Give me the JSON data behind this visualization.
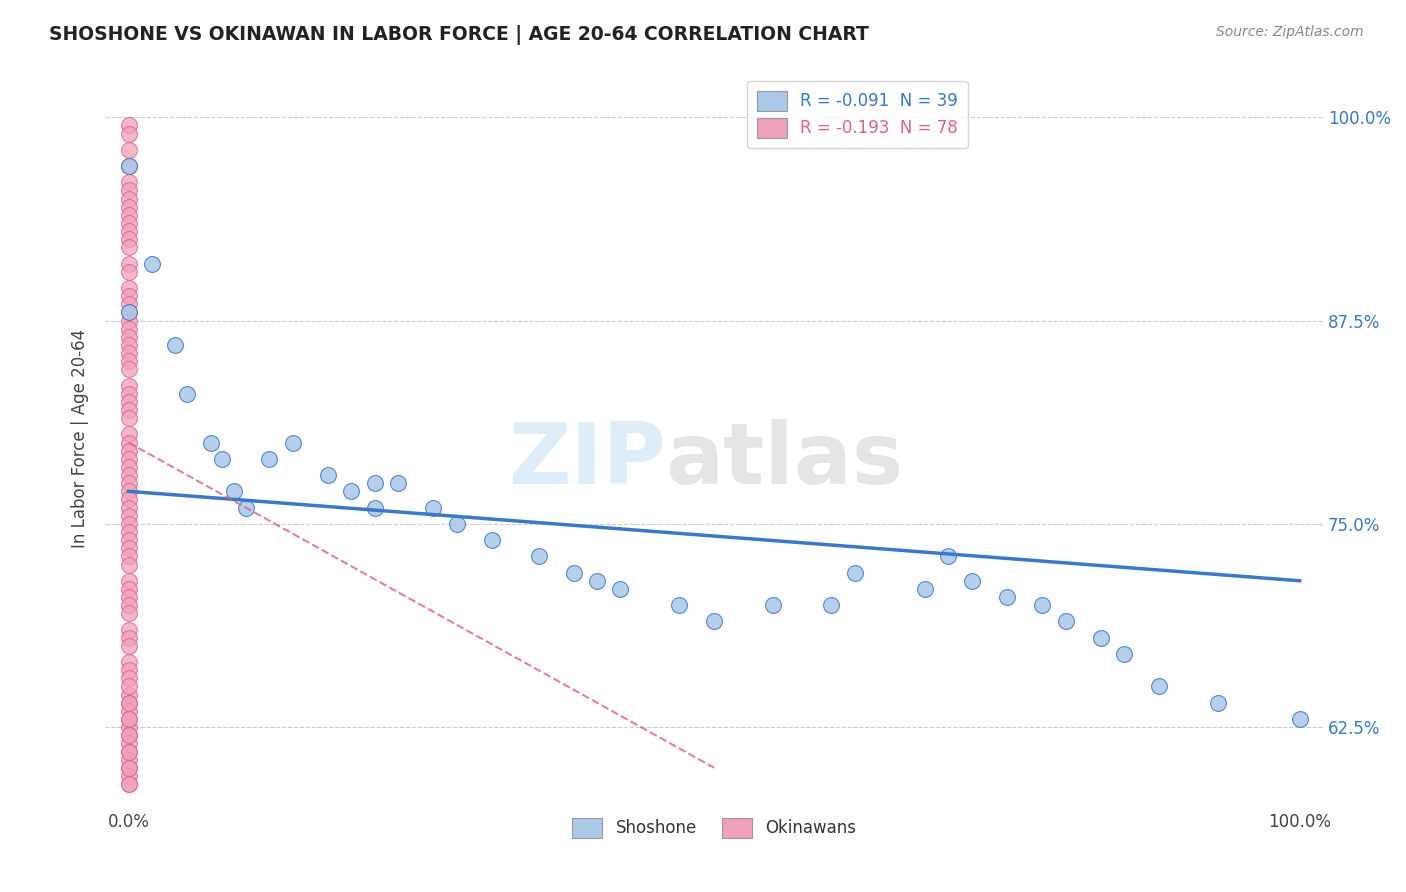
{
  "title": "SHOSHONE VS OKINAWAN IN LABOR FORCE | AGE 20-64 CORRELATION CHART",
  "source_text": "Source: ZipAtlas.com",
  "ylabel": "In Labor Force | Age 20-64",
  "xlim": [
    -0.02,
    1.02
  ],
  "ylim": [
    0.575,
    1.03
  ],
  "x_ticks": [
    0.0,
    0.25,
    0.5,
    0.75,
    1.0
  ],
  "x_tick_labels": [
    "0.0%",
    "",
    "",
    "",
    "100.0%"
  ],
  "y_tick_labels": [
    "62.5%",
    "75.0%",
    "87.5%",
    "100.0%"
  ],
  "y_ticks": [
    0.625,
    0.75,
    0.875,
    1.0
  ],
  "legend_r1": "-0.091",
  "legend_n1": "39",
  "legend_r2": "-0.193",
  "legend_n2": "78",
  "shoshone_color": "#aac8e8",
  "okinawan_color": "#f0a0b8",
  "line_shoshone_color": "#3a78c9",
  "line_okinawan_color": "#e06080",
  "shoshone_x": [
    0.0,
    0.0,
    0.02,
    0.04,
    0.05,
    0.07,
    0.08,
    0.09,
    0.1,
    0.12,
    0.14,
    0.17,
    0.19,
    0.21,
    0.21,
    0.23,
    0.26,
    0.28,
    0.31,
    0.35,
    0.38,
    0.4,
    0.42,
    0.47,
    0.5,
    0.55,
    0.6,
    0.62,
    0.68,
    0.7,
    0.72,
    0.75,
    0.78,
    0.8,
    0.83,
    0.85,
    0.88,
    0.93,
    1.0
  ],
  "shoshone_y": [
    0.97,
    0.88,
    0.91,
    0.86,
    0.83,
    0.8,
    0.79,
    0.77,
    0.76,
    0.79,
    0.8,
    0.78,
    0.77,
    0.76,
    0.775,
    0.775,
    0.76,
    0.75,
    0.74,
    0.73,
    0.72,
    0.715,
    0.71,
    0.7,
    0.69,
    0.7,
    0.7,
    0.72,
    0.71,
    0.73,
    0.715,
    0.705,
    0.7,
    0.69,
    0.68,
    0.67,
    0.65,
    0.64,
    0.63
  ],
  "okinawan_x": [
    0.0,
    0.0,
    0.0,
    0.0,
    0.0,
    0.0,
    0.0,
    0.0,
    0.0,
    0.0,
    0.0,
    0.0,
    0.0,
    0.0,
    0.0,
    0.0,
    0.0,
    0.0,
    0.0,
    0.0,
    0.0,
    0.0,
    0.0,
    0.0,
    0.0,
    0.0,
    0.0,
    0.0,
    0.0,
    0.0,
    0.0,
    0.0,
    0.0,
    0.0,
    0.0,
    0.0,
    0.0,
    0.0,
    0.0,
    0.0,
    0.0,
    0.0,
    0.0,
    0.0,
    0.0,
    0.0,
    0.0,
    0.0,
    0.0,
    0.0,
    0.0,
    0.0,
    0.0,
    0.0,
    0.0,
    0.0,
    0.0,
    0.0,
    0.0,
    0.0,
    0.0,
    0.0,
    0.0,
    0.0,
    0.0,
    0.0,
    0.0,
    0.0,
    0.0,
    0.0,
    0.0,
    0.0,
    0.0,
    0.0,
    0.0,
    0.0,
    0.0,
    0.0
  ],
  "okinawan_y": [
    0.995,
    0.99,
    0.98,
    0.97,
    0.96,
    0.955,
    0.95,
    0.945,
    0.94,
    0.935,
    0.93,
    0.925,
    0.92,
    0.91,
    0.905,
    0.895,
    0.89,
    0.885,
    0.88,
    0.875,
    0.87,
    0.865,
    0.86,
    0.855,
    0.85,
    0.845,
    0.835,
    0.83,
    0.825,
    0.82,
    0.815,
    0.805,
    0.8,
    0.795,
    0.79,
    0.785,
    0.78,
    0.775,
    0.77,
    0.765,
    0.76,
    0.755,
    0.75,
    0.745,
    0.74,
    0.735,
    0.73,
    0.725,
    0.715,
    0.71,
    0.705,
    0.7,
    0.695,
    0.685,
    0.68,
    0.675,
    0.665,
    0.66,
    0.655,
    0.645,
    0.64,
    0.635,
    0.625,
    0.62,
    0.615,
    0.61,
    0.605,
    0.6,
    0.595,
    0.59,
    0.63,
    0.64,
    0.65,
    0.63,
    0.62,
    0.6,
    0.61,
    0.59
  ],
  "trend_shoshone_x0": 0.0,
  "trend_shoshone_y0": 0.77,
  "trend_shoshone_x1": 1.0,
  "trend_shoshone_y1": 0.715,
  "trend_okinawan_x0": 0.0,
  "trend_okinawan_y0": 0.8,
  "trend_okinawan_x1": 0.5,
  "trend_okinawan_y1": 0.6
}
